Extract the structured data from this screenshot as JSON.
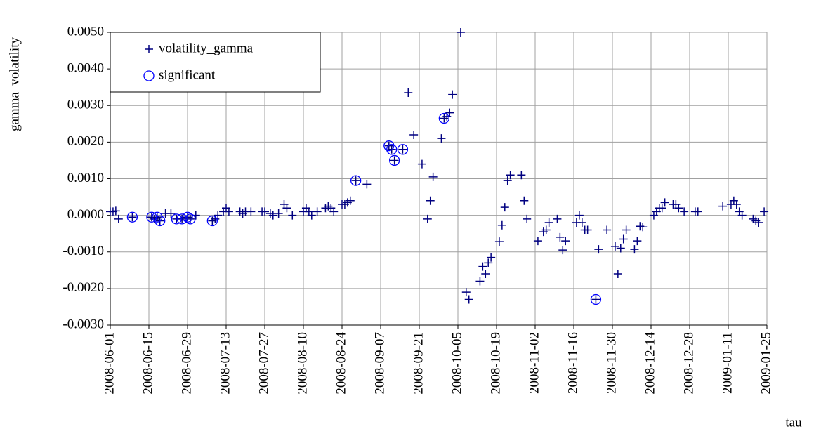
{
  "chart_data": {
    "type": "scatter",
    "y_label": "gamma_volatility",
    "x_label": "tau",
    "xlim": [
      "2008-06-01",
      "2009-01-25"
    ],
    "xticks": [
      "2008-06-01",
      "2008-06-15",
      "2008-06-29",
      "2008-07-13",
      "2008-07-27",
      "2008-08-10",
      "2008-08-24",
      "2008-09-07",
      "2008-09-21",
      "2008-10-05",
      "2008-10-19",
      "2008-11-02",
      "2008-11-16",
      "2008-11-30",
      "2008-12-14",
      "2008-12-28",
      "2009-01-11",
      "2009-01-25"
    ],
    "ylim": [
      -0.003,
      0.005
    ],
    "yticks": [
      {
        "value": -0.003,
        "label": "-0.0030"
      },
      {
        "value": -0.002,
        "label": "-0.0020"
      },
      {
        "value": -0.001,
        "label": "-0.0010"
      },
      {
        "value": 0,
        "label": "0.0000"
      },
      {
        "value": 0.001,
        "label": "0.0010"
      },
      {
        "value": 0.002,
        "label": "0.0020"
      },
      {
        "value": 0.003,
        "label": "0.0030"
      },
      {
        "value": 0.004,
        "label": "0.0040"
      },
      {
        "value": 0.005,
        "label": "0.0050"
      }
    ],
    "grid": true,
    "legend": "top-left",
    "series": [
      {
        "name": "volatility_gamma",
        "color": "#000080",
        "marker": "plus",
        "x": [
          "2008-06-01",
          "2008-06-02",
          "2008-06-03",
          "2008-06-04",
          "2008-06-09",
          "2008-06-16",
          "2008-06-17",
          "2008-06-18",
          "2008-06-19",
          "2008-06-21",
          "2008-06-23",
          "2008-06-25",
          "2008-06-27",
          "2008-06-29",
          "2008-06-30",
          "2008-07-02",
          "2008-07-08",
          "2008-07-09",
          "2008-07-10",
          "2008-07-12",
          "2008-07-13",
          "2008-07-14",
          "2008-07-18",
          "2008-07-19",
          "2008-07-20",
          "2008-07-22",
          "2008-07-26",
          "2008-07-27",
          "2008-07-29",
          "2008-07-30",
          "2008-08-01",
          "2008-08-03",
          "2008-08-04",
          "2008-08-06",
          "2008-08-10",
          "2008-08-11",
          "2008-08-12",
          "2008-08-13",
          "2008-08-15",
          "2008-08-18",
          "2008-08-19",
          "2008-08-20",
          "2008-08-21",
          "2008-08-24",
          "2008-08-25",
          "2008-08-26",
          "2008-08-27",
          "2008-08-29",
          "2008-09-02",
          "2008-09-10",
          "2008-09-11",
          "2008-09-12",
          "2008-09-15",
          "2008-09-17",
          "2008-09-19",
          "2008-09-22",
          "2008-09-24",
          "2008-09-25",
          "2008-09-26",
          "2008-09-29",
          "2008-09-30",
          "2008-10-01",
          "2008-10-02",
          "2008-10-03",
          "2008-10-06",
          "2008-10-08",
          "2008-10-09",
          "2008-10-13",
          "2008-10-14",
          "2008-10-15",
          "2008-10-16",
          "2008-10-17",
          "2008-10-20",
          "2008-10-21",
          "2008-10-22",
          "2008-10-23",
          "2008-10-24",
          "2008-10-28",
          "2008-10-29",
          "2008-10-30",
          "2008-11-03",
          "2008-11-05",
          "2008-11-06",
          "2008-11-07",
          "2008-11-10",
          "2008-11-11",
          "2008-11-12",
          "2008-11-13",
          "2008-11-17",
          "2008-11-18",
          "2008-11-19",
          "2008-11-20",
          "2008-11-21",
          "2008-11-24",
          "2008-11-25",
          "2008-11-28",
          "2008-12-01",
          "2008-12-02",
          "2008-12-03",
          "2008-12-04",
          "2008-12-05",
          "2008-12-08",
          "2008-12-09",
          "2008-12-10",
          "2008-12-11",
          "2008-12-15",
          "2008-12-16",
          "2008-12-17",
          "2008-12-18",
          "2008-12-19",
          "2008-12-22",
          "2008-12-23",
          "2008-12-24",
          "2008-12-26",
          "2008-12-30",
          "2008-12-31",
          "2009-01-09",
          "2009-01-12",
          "2009-01-13",
          "2009-01-14",
          "2009-01-15",
          "2009-01-16",
          "2009-01-20",
          "2009-01-21",
          "2009-01-22",
          "2009-01-24"
        ],
        "values": [
          0.0001,
          0.0001,
          0.00012,
          -0.0001,
          -5e-05,
          -5e-05,
          -0.0001,
          -5e-05,
          -0.00015,
          5e-05,
          5e-05,
          -0.0001,
          -0.0001,
          -5e-05,
          -0.0001,
          0,
          -0.00015,
          -0.0001,
          0,
          0.0001,
          0.0002,
          0.0001,
          0.0001,
          5e-05,
          0.0001,
          0.0001,
          0.0001,
          0.0001,
          5e-05,
          0,
          5e-05,
          0.0003,
          0.0002,
          0,
          0.0001,
          0.0002,
          0.0001,
          0,
          0.0001,
          0.0002,
          0.00025,
          0.0002,
          0.0001,
          0.0003,
          0.0003,
          0.00035,
          0.0004,
          0.00095,
          0.00085,
          0.0019,
          0.0018,
          0.0015,
          0.0018,
          0.00335,
          0.0022,
          0.0014,
          -0.0001,
          0.0004,
          0.00105,
          0.0021,
          0.00265,
          0.0027,
          0.0028,
          0.0033,
          0.005,
          -0.0021,
          -0.0023,
          -0.0018,
          -0.0014,
          -0.0016,
          -0.0013,
          -0.00115,
          -0.00072,
          -0.00027,
          0.00022,
          0.00095,
          0.0011,
          0.0011,
          0.0004,
          -0.0001,
          -0.0007,
          -0.00045,
          -0.0004,
          -0.0002,
          -0.0001,
          -0.0006,
          -0.00095,
          -0.0007,
          -0.0002,
          0,
          -0.0002,
          -0.0004,
          -0.0004,
          -0.0023,
          -0.00093,
          -0.0004,
          -0.00085,
          -0.0016,
          -0.0009,
          -0.00065,
          -0.0004,
          -0.00093,
          -0.0007,
          -0.0003,
          -0.00032,
          0,
          0.0001,
          0.0002,
          0.0002,
          0.00035,
          0.0003,
          0.0003,
          0.0002,
          0.0001,
          0.0001,
          0.0001,
          0.00025,
          0.0003,
          0.0004,
          0.0003,
          0.0001,
          0,
          -0.0001,
          -0.00015,
          -0.0002,
          0.0001
        ]
      },
      {
        "name": "significant",
        "color": "#0000ff",
        "marker": "circle",
        "x": [
          "2008-06-09",
          "2008-06-16",
          "2008-06-18",
          "2008-06-19",
          "2008-06-25",
          "2008-06-27",
          "2008-06-29",
          "2008-06-30",
          "2008-07-08",
          "2008-08-29",
          "2008-09-10",
          "2008-09-11",
          "2008-09-12",
          "2008-09-15",
          "2008-09-30",
          "2008-11-24"
        ],
        "values": [
          -5e-05,
          -5e-05,
          -5e-05,
          -0.00015,
          -0.0001,
          -0.0001,
          -5e-05,
          -0.0001,
          -0.00015,
          0.00095,
          0.0019,
          0.0018,
          0.0015,
          0.0018,
          0.00265,
          -0.0023
        ]
      }
    ]
  }
}
